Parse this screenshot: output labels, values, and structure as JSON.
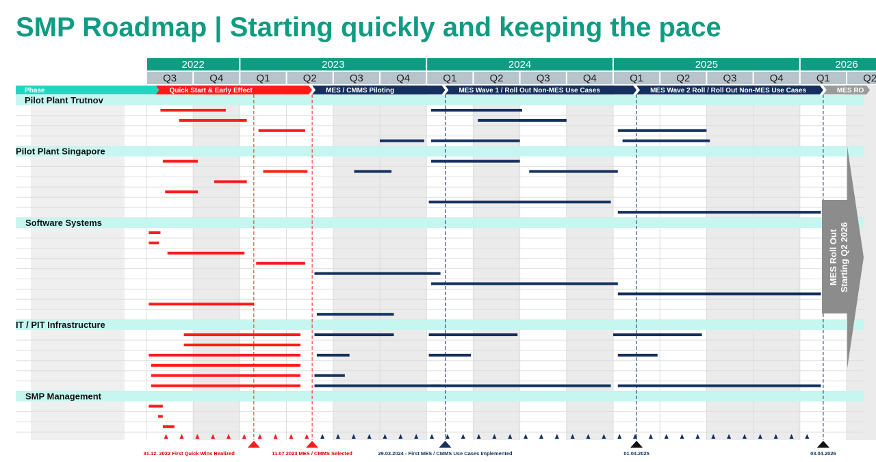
{
  "title": "SMP Roadmap | Starting quickly and keeping the pace",
  "colors": {
    "title": "#0f9c82",
    "year_header": "#0f9c82",
    "quarter_header": "#b8c4cc",
    "section_band": "#c5f7f0",
    "quick_start": "#ff1a1a",
    "mes": "#13305e",
    "phase_teal": "#1fd6c0",
    "rollout_arrow": "#8c8c8c"
  },
  "timeline": {
    "years": [
      {
        "label": "2022",
        "start": 0,
        "span": 2
      },
      {
        "label": "2023",
        "start": 2,
        "span": 4
      },
      {
        "label": "2024",
        "start": 6,
        "span": 4
      },
      {
        "label": "2025",
        "start": 10,
        "span": 4
      },
      {
        "label": "2026",
        "start": 14,
        "span": 2
      }
    ],
    "quarters": [
      "Q3",
      "Q4",
      "Q1",
      "Q2",
      "Q3",
      "Q4",
      "Q1",
      "Q2",
      "Q3",
      "Q4",
      "Q1",
      "Q2",
      "Q3",
      "Q4",
      "Q1",
      "Q2"
    ]
  },
  "phase_label": "Phase",
  "phases": [
    {
      "label": "Quick Start & Early Effect",
      "start": 0.2,
      "end": 3.55,
      "color": "#ff1a1a"
    },
    {
      "label": "MES / CMMS Piloting",
      "start": 3.55,
      "end": 6.4,
      "color": "#13305e"
    },
    {
      "label": "MES Wave 1 / Roll Out Non-MES Use Cases",
      "start": 6.4,
      "end": 10.5,
      "color": "#13305e"
    },
    {
      "label": "MES Wave 2 Roll / Roll Out Non-MES Use Cases",
      "start": 10.5,
      "end": 14.5,
      "color": "#13305e"
    },
    {
      "label": "MES RO",
      "start": 14.5,
      "end": 15.5,
      "color": "#9a9a9a"
    }
  ],
  "sections": [
    {
      "name": "Pilot Plant Trutnov",
      "rows": [
        [
          [
            0.3,
            1.7,
            "r"
          ],
          [
            6.1,
            8.05,
            "b"
          ]
        ],
        [
          [
            0.7,
            2.15,
            "r"
          ],
          [
            7.1,
            9.0,
            "b"
          ]
        ],
        [
          [
            2.4,
            3.4,
            "r"
          ],
          [
            10.1,
            12.0,
            "b"
          ]
        ],
        [
          [
            5.0,
            5.95,
            "b"
          ],
          [
            6.1,
            8.0,
            "b"
          ],
          [
            10.2,
            12.07,
            "b"
          ]
        ]
      ]
    },
    {
      "name": "Pilot Plant Singapore",
      "rows": [
        [
          [
            0.35,
            1.1,
            "r"
          ],
          [
            6.1,
            8.0,
            "b"
          ]
        ],
        [
          [
            2.5,
            3.45,
            "r"
          ],
          [
            4.45,
            5.25,
            "b"
          ],
          [
            8.2,
            10.1,
            "b"
          ]
        ],
        [
          [
            1.45,
            2.15,
            "r"
          ]
        ],
        [
          [
            0.4,
            1.1,
            "r"
          ]
        ],
        [
          [
            6.05,
            9.95,
            "b"
          ]
        ],
        [
          [
            10.1,
            14.45,
            "b"
          ]
        ]
      ]
    },
    {
      "name": "Software Systems",
      "rows": [
        [
          [
            0.05,
            0.3,
            "r"
          ]
        ],
        [
          [
            0.05,
            0.27,
            "r"
          ]
        ],
        [
          [
            0.45,
            2.1,
            "r"
          ]
        ],
        [
          [
            2.35,
            3.4,
            "r"
          ]
        ],
        [
          [
            3.6,
            6.3,
            "b"
          ]
        ],
        [
          [
            6.1,
            10.1,
            "b"
          ]
        ],
        [
          [
            10.1,
            14.45,
            "b"
          ]
        ],
        [
          [
            0.05,
            2.3,
            "r"
          ]
        ],
        [
          [
            3.65,
            5.3,
            "b"
          ]
        ]
      ]
    },
    {
      "name": "IT / PIT Infrastructure",
      "rows": [
        [
          [
            0.8,
            3.3,
            "r"
          ],
          [
            3.6,
            5.3,
            "b"
          ],
          [
            6.05,
            7.95,
            "b"
          ],
          [
            10.0,
            11.9,
            "b"
          ]
        ],
        [
          [
            0.8,
            3.3,
            "r"
          ]
        ],
        [
          [
            0.05,
            3.3,
            "r"
          ],
          [
            3.65,
            4.35,
            "b"
          ],
          [
            6.05,
            6.95,
            "b"
          ],
          [
            10.1,
            10.95,
            "b"
          ]
        ],
        [
          [
            0.1,
            3.3,
            "r"
          ]
        ],
        [
          [
            0.1,
            3.3,
            "r"
          ],
          [
            3.6,
            4.25,
            "b"
          ]
        ],
        [
          [
            0.1,
            3.3,
            "r"
          ],
          [
            3.6,
            6.3,
            "b"
          ],
          [
            6.1,
            9.95,
            "b"
          ],
          [
            10.1,
            14.45,
            "b"
          ]
        ]
      ]
    },
    {
      "name": "SMP Management",
      "rows": [
        [
          [
            0.05,
            0.35,
            "r"
          ]
        ],
        [
          [
            0.25,
            0.35,
            "r"
          ]
        ],
        [
          [
            0.35,
            0.6,
            "r"
          ]
        ],
        []
      ]
    }
  ],
  "milestones": [
    {
      "pos": 2.3,
      "label": "31.12. 2022 First Quick Wins Realized",
      "color": "#ff1a1a",
      "anchor": "end"
    },
    {
      "pos": 3.55,
      "label": "11.07.2023 MES / CMMS Selected",
      "color": "#ff1a1a",
      "anchor": "middle"
    },
    {
      "pos": 6.4,
      "label": "29.03.2024 - First MES / CMMS Use Cases Implemented",
      "color": "#13305e",
      "anchor": "middle"
    },
    {
      "pos": 10.5,
      "label": "01.04.2025",
      "color": "#13305e",
      "anchor": "middle"
    },
    {
      "pos": 14.5,
      "label": "03.04.2026",
      "color": "#13305e",
      "anchor": "middle"
    }
  ],
  "rollout": {
    "line1": "MES Roll Out",
    "line2": "Starting Q2 2026"
  }
}
